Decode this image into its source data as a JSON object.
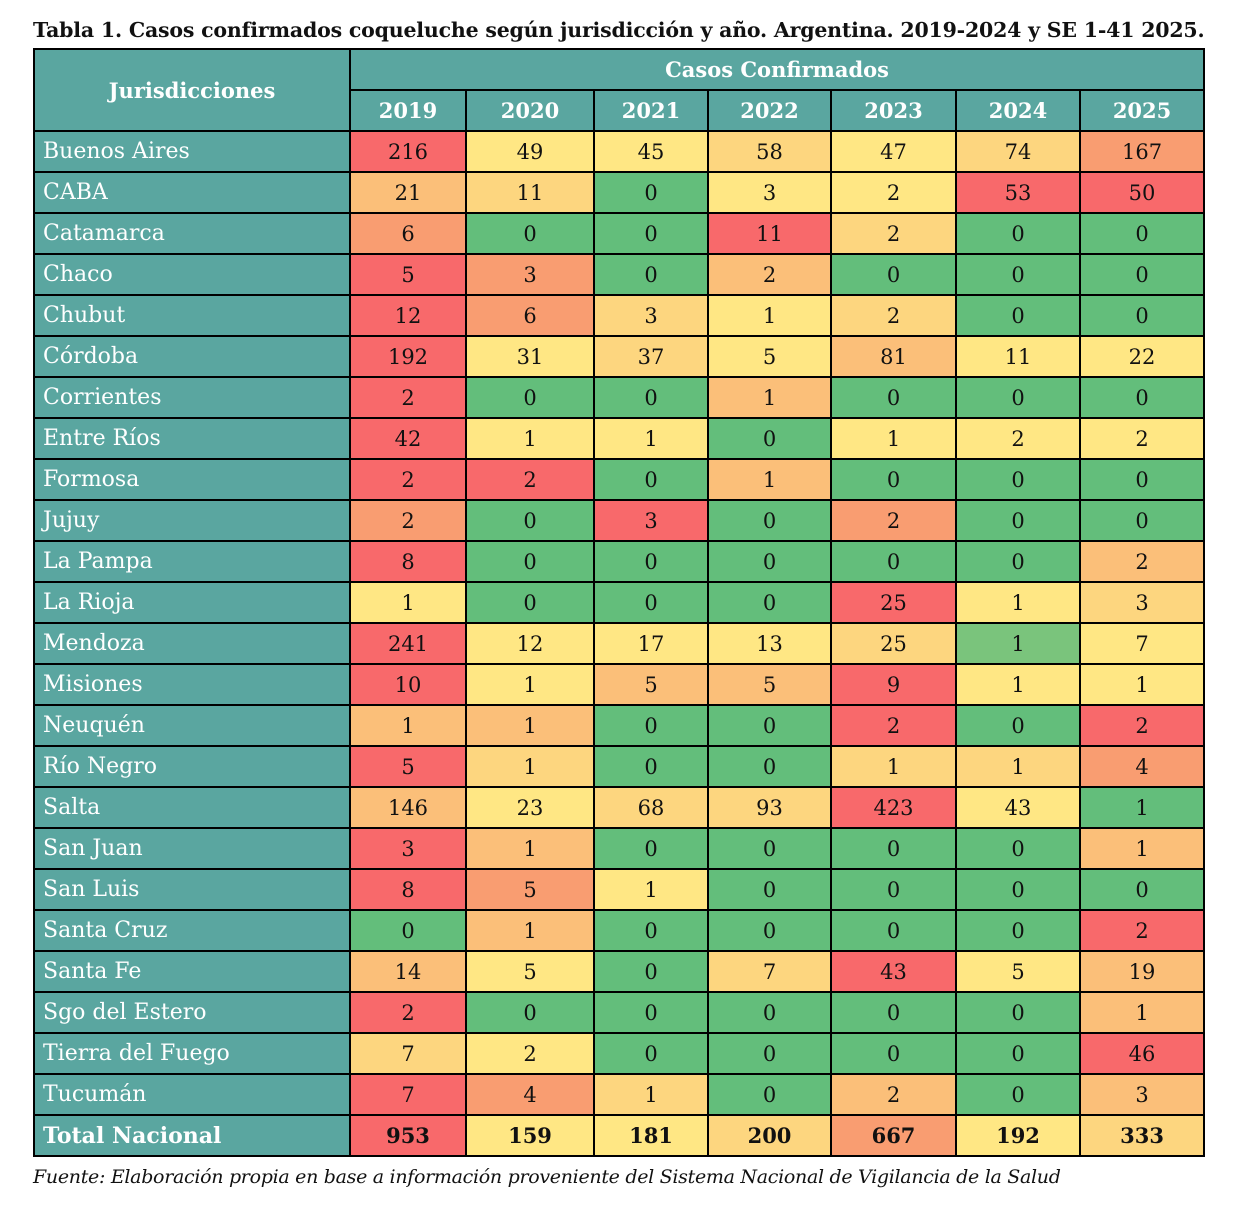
{
  "title": "Tabla 1. Casos confirmados coqueluche según jurisdicción y año. Argentina. 2019-2024 y SE 1-41 2025.",
  "header": {
    "row_label": "Jurisdicciones",
    "group_label": "Casos Confirmados",
    "years": [
      "2019",
      "2020",
      "2021",
      "2022",
      "2023",
      "2024",
      "2025"
    ]
  },
  "palette": {
    "r": "#f8696b",
    "o": "#f99d71",
    "lo": "#fbbf79",
    "y2": "#fdd67f",
    "y1": "#ffe784",
    "g": "#63be7b",
    "lg": "#7ac47c",
    "header_bg": "#5aa6a0"
  },
  "rows": [
    {
      "name": "Buenos Aires",
      "values": [
        "216",
        "49",
        "45",
        "58",
        "47",
        "74",
        "167"
      ],
      "colors": [
        "r",
        "y1",
        "y1",
        "y2",
        "y1",
        "y2",
        "o"
      ]
    },
    {
      "name": "CABA",
      "values": [
        "21",
        "11",
        "0",
        "3",
        "2",
        "53",
        "50"
      ],
      "colors": [
        "lo",
        "y2",
        "g",
        "y1",
        "y1",
        "r",
        "r"
      ]
    },
    {
      "name": "Catamarca",
      "values": [
        "6",
        "0",
        "0",
        "11",
        "2",
        "0",
        "0"
      ],
      "colors": [
        "o",
        "g",
        "g",
        "r",
        "y2",
        "g",
        "g"
      ]
    },
    {
      "name": "Chaco",
      "values": [
        "5",
        "3",
        "0",
        "2",
        "0",
        "0",
        "0"
      ],
      "colors": [
        "r",
        "o",
        "g",
        "lo",
        "g",
        "g",
        "g"
      ]
    },
    {
      "name": "Chubut",
      "values": [
        "12",
        "6",
        "3",
        "1",
        "2",
        "0",
        "0"
      ],
      "colors": [
        "r",
        "o",
        "y2",
        "y1",
        "y2",
        "g",
        "g"
      ]
    },
    {
      "name": "Córdoba",
      "values": [
        "192",
        "31",
        "37",
        "5",
        "81",
        "11",
        "22"
      ],
      "colors": [
        "r",
        "y1",
        "y2",
        "y1",
        "lo",
        "y1",
        "y1"
      ]
    },
    {
      "name": "Corrientes",
      "values": [
        "2",
        "0",
        "0",
        "1",
        "0",
        "0",
        "0"
      ],
      "colors": [
        "r",
        "g",
        "g",
        "lo",
        "g",
        "g",
        "g"
      ]
    },
    {
      "name": "Entre Ríos",
      "values": [
        "42",
        "1",
        "1",
        "0",
        "1",
        "2",
        "2"
      ],
      "colors": [
        "r",
        "y1",
        "y1",
        "g",
        "y1",
        "y1",
        "y1"
      ]
    },
    {
      "name": "Formosa",
      "values": [
        "2",
        "2",
        "0",
        "1",
        "0",
        "0",
        "0"
      ],
      "colors": [
        "r",
        "r",
        "g",
        "lo",
        "g",
        "g",
        "g"
      ]
    },
    {
      "name": "Jujuy",
      "values": [
        "2",
        "0",
        "3",
        "0",
        "2",
        "0",
        "0"
      ],
      "colors": [
        "o",
        "g",
        "r",
        "g",
        "o",
        "g",
        "g"
      ]
    },
    {
      "name": "La Pampa",
      "values": [
        "8",
        "0",
        "0",
        "0",
        "0",
        "0",
        "2"
      ],
      "colors": [
        "r",
        "g",
        "g",
        "g",
        "g",
        "g",
        "lo"
      ]
    },
    {
      "name": "La Rioja",
      "values": [
        "1",
        "0",
        "0",
        "0",
        "25",
        "1",
        "3"
      ],
      "colors": [
        "y1",
        "g",
        "g",
        "g",
        "r",
        "y1",
        "y2"
      ]
    },
    {
      "name": "Mendoza",
      "values": [
        "241",
        "12",
        "17",
        "13",
        "25",
        "1",
        "7"
      ],
      "colors": [
        "r",
        "y1",
        "y1",
        "y1",
        "y2",
        "lg",
        "y1"
      ]
    },
    {
      "name": "Misiones",
      "values": [
        "10",
        "1",
        "5",
        "5",
        "9",
        "1",
        "1"
      ],
      "colors": [
        "r",
        "y1",
        "lo",
        "lo",
        "r",
        "y1",
        "y1"
      ]
    },
    {
      "name": "Neuquén",
      "values": [
        "1",
        "1",
        "0",
        "0",
        "2",
        "0",
        "2"
      ],
      "colors": [
        "lo",
        "lo",
        "g",
        "g",
        "r",
        "g",
        "r"
      ]
    },
    {
      "name": "Río Negro",
      "values": [
        "5",
        "1",
        "0",
        "0",
        "1",
        "1",
        "4"
      ],
      "colors": [
        "r",
        "y2",
        "g",
        "g",
        "y2",
        "y2",
        "o"
      ]
    },
    {
      "name": "Salta",
      "values": [
        "146",
        "23",
        "68",
        "93",
        "423",
        "43",
        "1"
      ],
      "colors": [
        "lo",
        "y1",
        "y2",
        "y2",
        "r",
        "y1",
        "g"
      ]
    },
    {
      "name": "San Juan",
      "values": [
        "3",
        "1",
        "0",
        "0",
        "0",
        "0",
        "1"
      ],
      "colors": [
        "r",
        "lo",
        "g",
        "g",
        "g",
        "g",
        "lo"
      ]
    },
    {
      "name": "San Luis",
      "values": [
        "8",
        "5",
        "1",
        "0",
        "0",
        "0",
        "0"
      ],
      "colors": [
        "r",
        "o",
        "y1",
        "g",
        "g",
        "g",
        "g"
      ]
    },
    {
      "name": "Santa Cruz",
      "values": [
        "0",
        "1",
        "0",
        "0",
        "0",
        "0",
        "2"
      ],
      "colors": [
        "g",
        "lo",
        "g",
        "g",
        "g",
        "g",
        "r"
      ]
    },
    {
      "name": "Santa Fe",
      "values": [
        "14",
        "5",
        "0",
        "7",
        "43",
        "5",
        "19"
      ],
      "colors": [
        "lo",
        "y1",
        "g",
        "y2",
        "r",
        "y1",
        "lo"
      ]
    },
    {
      "name": "Sgo del Estero",
      "values": [
        "2",
        "0",
        "0",
        "0",
        "0",
        "0",
        "1"
      ],
      "colors": [
        "r",
        "g",
        "g",
        "g",
        "g",
        "g",
        "lo"
      ]
    },
    {
      "name": "Tierra del Fuego",
      "values": [
        "7",
        "2",
        "0",
        "0",
        "0",
        "0",
        "46"
      ],
      "colors": [
        "y2",
        "y1",
        "g",
        "g",
        "g",
        "g",
        "r"
      ]
    },
    {
      "name": "Tucumán",
      "values": [
        "7",
        "4",
        "1",
        "0",
        "2",
        "0",
        "3"
      ],
      "colors": [
        "r",
        "o",
        "y2",
        "g",
        "lo",
        "g",
        "lo"
      ]
    }
  ],
  "total": {
    "name": "Total Nacional",
    "values": [
      "953",
      "159",
      "181",
      "200",
      "667",
      "192",
      "333"
    ],
    "colors": [
      "r",
      "y1",
      "y1",
      "y2",
      "o",
      "y1",
      "y2"
    ]
  },
  "source": "Fuente: Elaboración propia en base a información proveniente del Sistema Nacional de Vigilancia de la Salud"
}
